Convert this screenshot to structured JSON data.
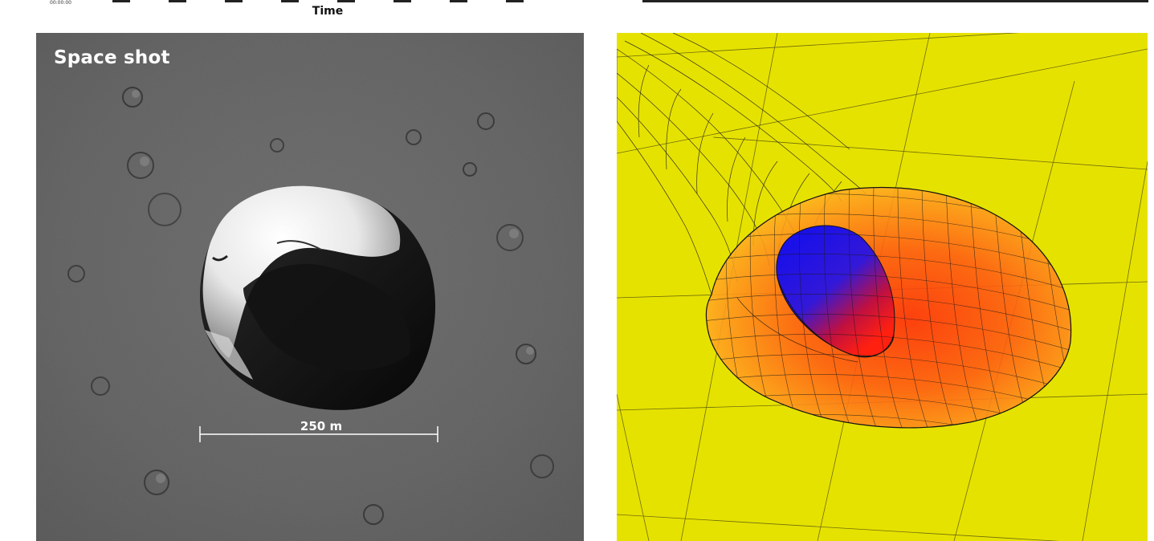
{
  "header": {
    "time_tick": "00:00:00",
    "time_axis_label": "Time"
  },
  "left_panel": {
    "title": "Space shot",
    "scale_bar_label": "250 m",
    "colors": {
      "surface": "#555555",
      "bright_rim": "#f2f2f2",
      "shadow": "#111111",
      "text": "#ffffff"
    }
  },
  "right_panel": {
    "colors": {
      "background": "#e6e200",
      "grid": "#2a2a10",
      "envelope": "#ff5a14",
      "core": "#2a1ae0",
      "mesh": "#1a1a1a"
    }
  }
}
